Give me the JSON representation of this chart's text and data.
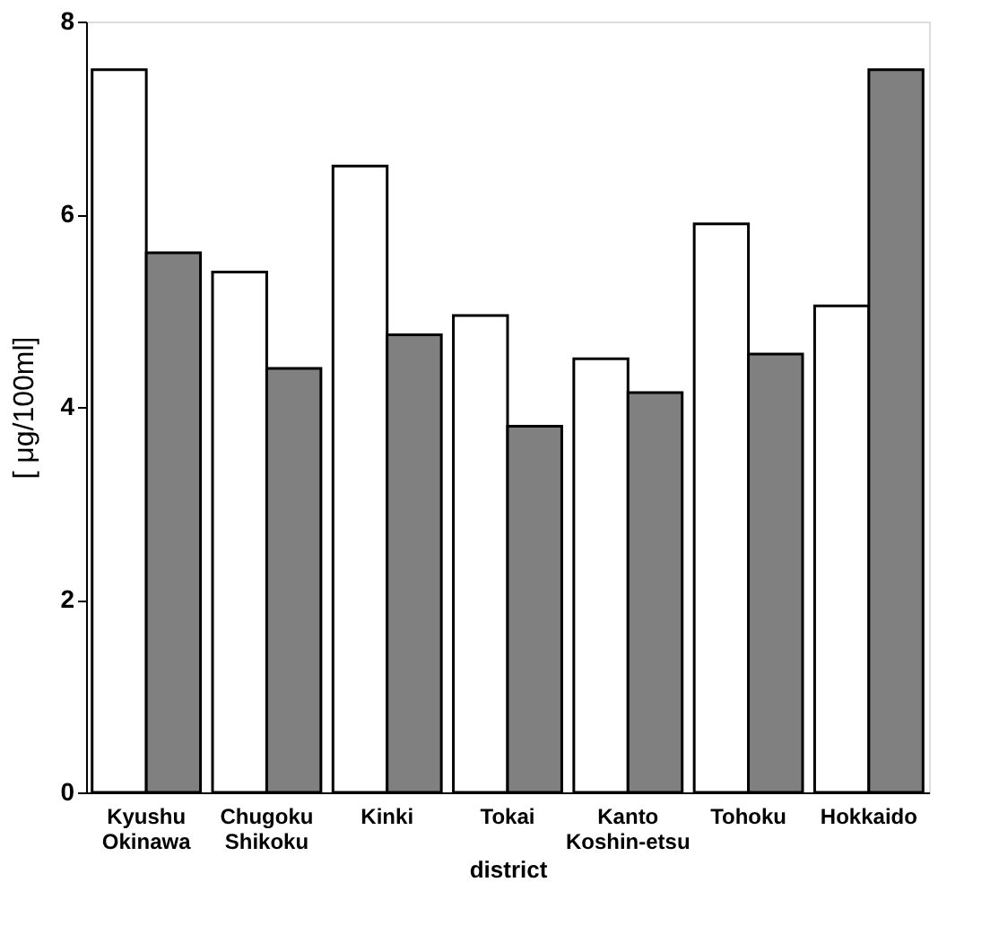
{
  "chart_data": {
    "type": "bar",
    "xlabel": "district",
    "ylabel": "[ μg/100ml]",
    "categories": [
      "Kyushu\nOkinawa",
      "Chugoku\nShikoku",
      "Kinki",
      "Tokai",
      "Kanto\nKoshin-etsu",
      "Tohoku",
      "Hokkaido"
    ],
    "series": [
      {
        "color": "#ffffff",
        "values": [
          7.5,
          5.4,
          6.5,
          4.95,
          4.5,
          5.9,
          5.05
        ]
      },
      {
        "color": "#808080",
        "values": [
          5.6,
          4.4,
          4.75,
          3.8,
          4.15,
          4.55,
          7.5
        ]
      }
    ],
    "ylim": [
      0,
      8
    ],
    "yticks": [
      0,
      2,
      4,
      6,
      8
    ],
    "grid": false,
    "legend": false
  }
}
